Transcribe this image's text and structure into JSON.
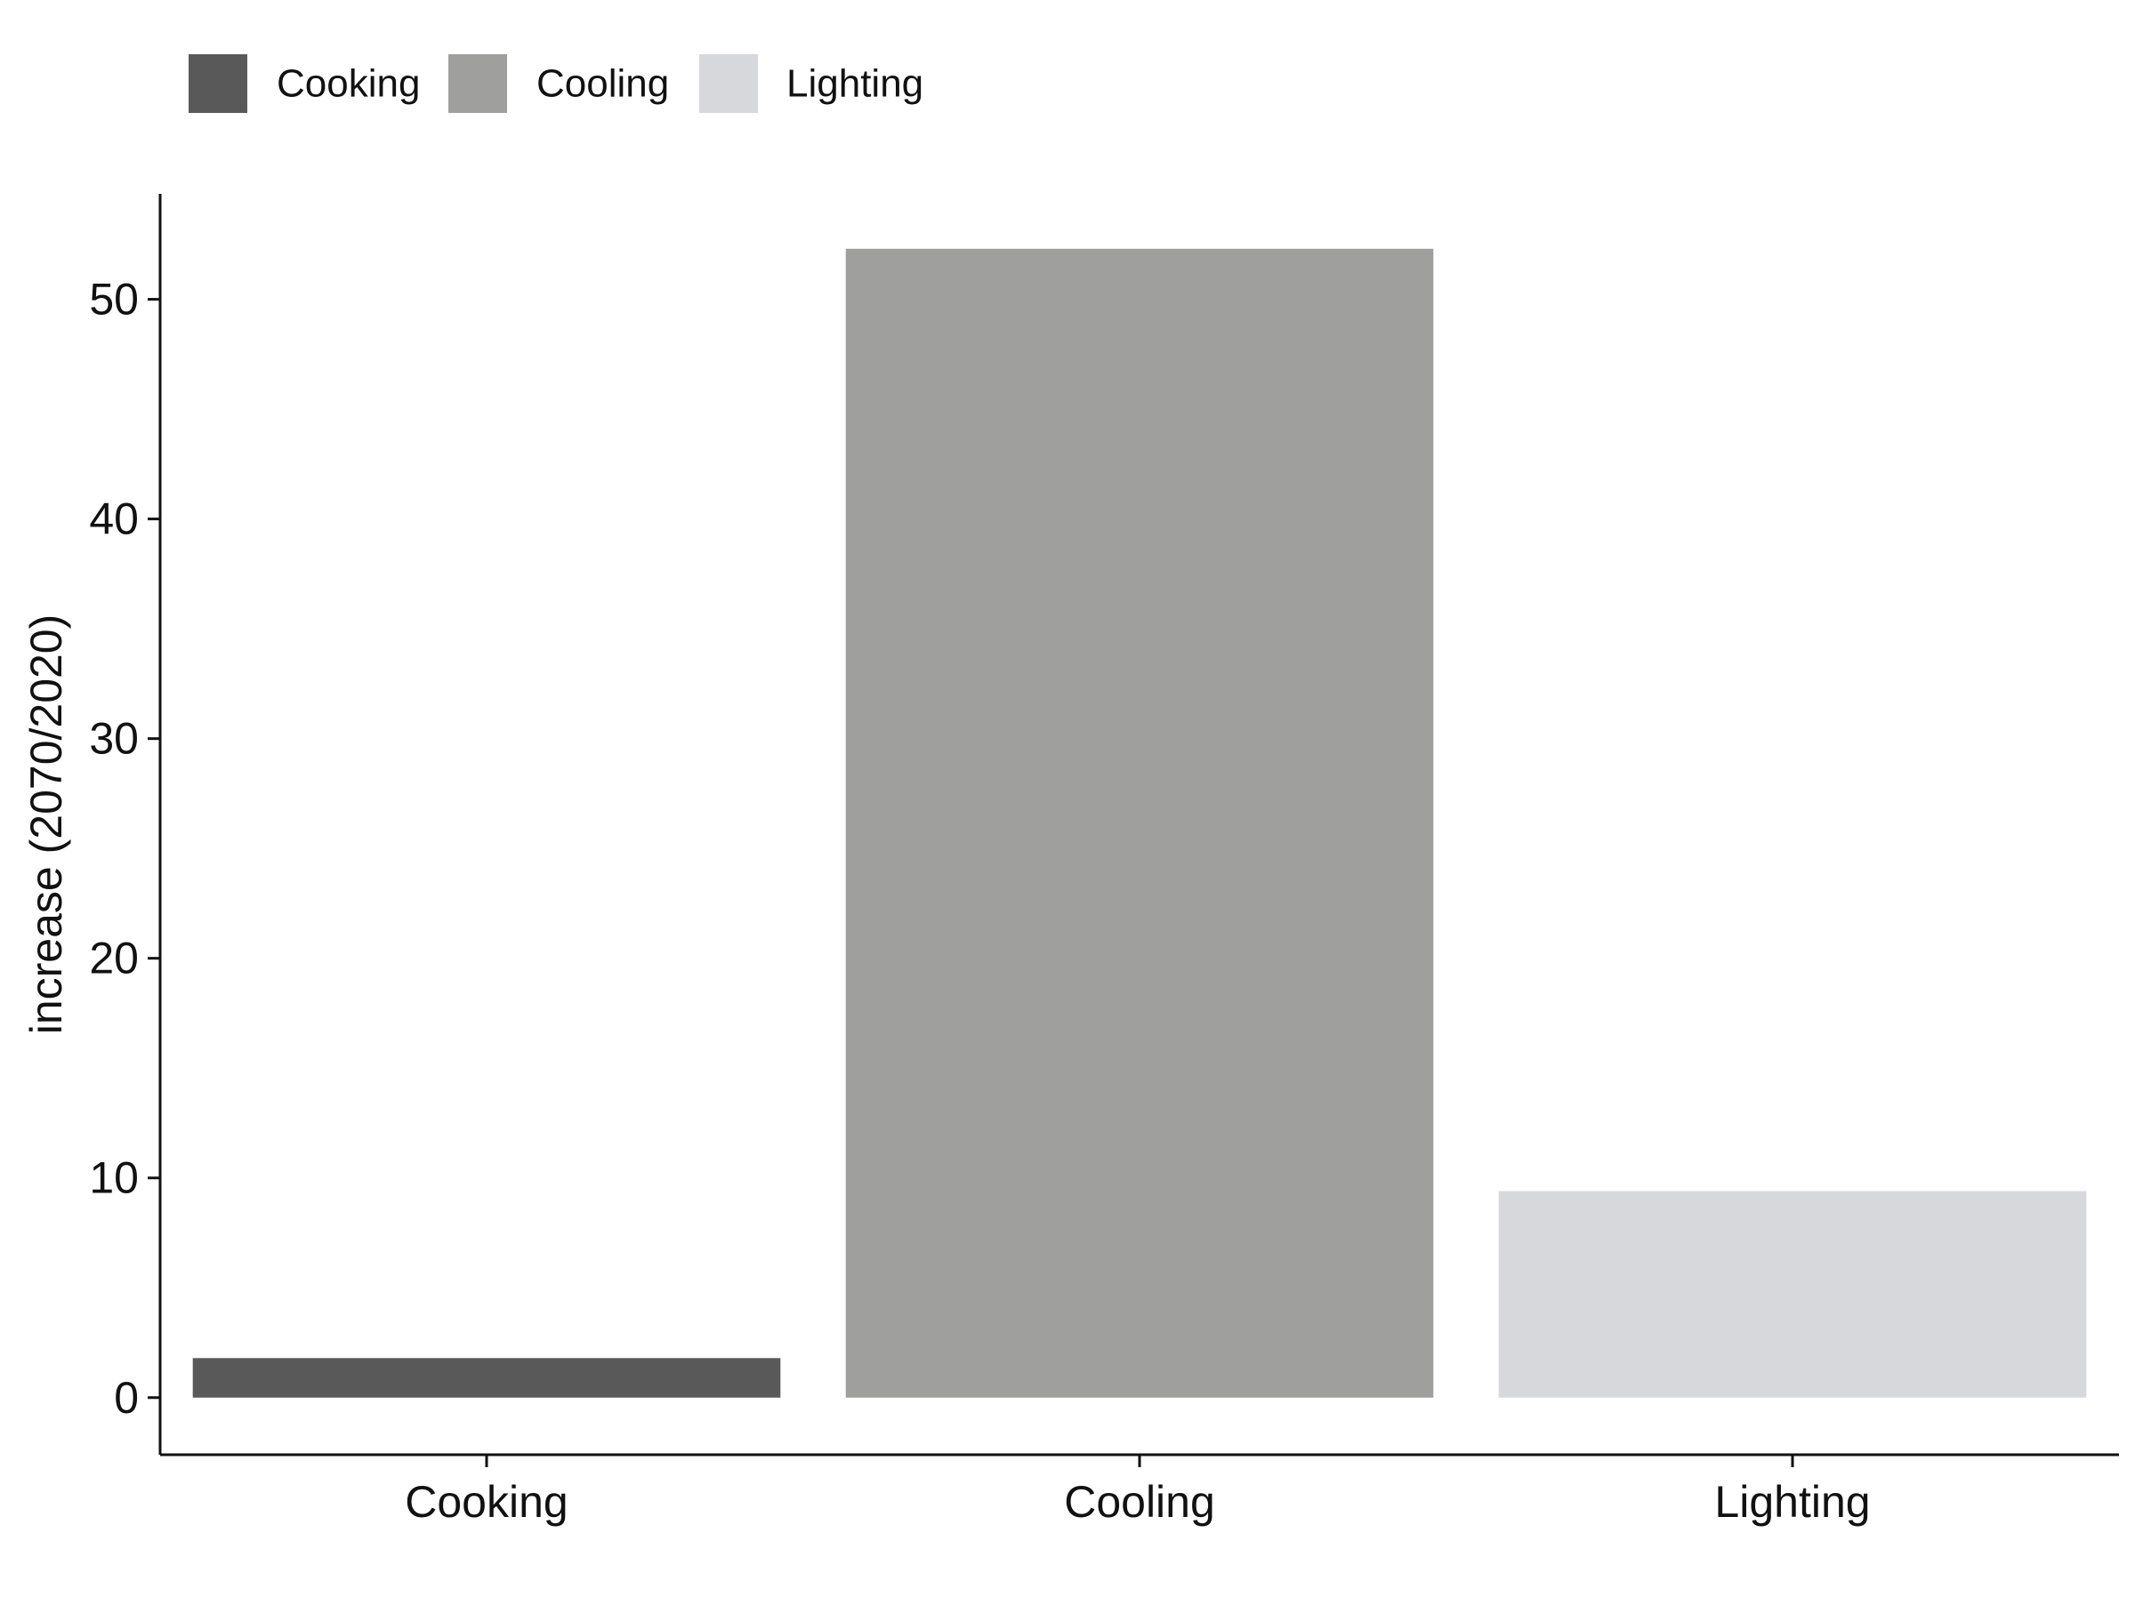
{
  "chart_data": {
    "type": "bar",
    "title": "",
    "xlabel": "",
    "ylabel": "increase (2070/2020)",
    "categories": [
      "Cooking",
      "Cooling",
      "Lighting"
    ],
    "values": [
      1.8,
      52.3,
      9.4
    ],
    "ylim": [
      -2.6,
      54.8
    ],
    "yticks": [
      0,
      10,
      20,
      30,
      40,
      50
    ],
    "grid": false,
    "legend": {
      "placement": "top-left",
      "entries": [
        "Cooking",
        "Cooling",
        "Lighting"
      ]
    },
    "colors": [
      "#595959",
      "#9f9f9e",
      "#d7d8dc"
    ]
  }
}
